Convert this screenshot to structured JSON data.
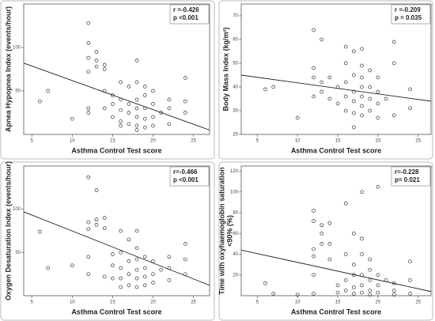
{
  "chart_data": [
    {
      "type": "scatter",
      "x_label": "Asthma Control Test score",
      "y_label": "Apnea Hypopnea Index (events/hour)",
      "annotations": [
        "r =-0.426",
        "p <0.001"
      ],
      "x": [
        6,
        7,
        10,
        12,
        12,
        12,
        12,
        12,
        12,
        13,
        13,
        13,
        14,
        14,
        14,
        14,
        15,
        15,
        15,
        16,
        16,
        16,
        16,
        16,
        17,
        17,
        17,
        17,
        18,
        18,
        18,
        18,
        18,
        18,
        18,
        19,
        19,
        19,
        19,
        19,
        20,
        20,
        20,
        20,
        21,
        22,
        22,
        22,
        24,
        24,
        24
      ],
      "values": [
        38,
        50,
        18,
        128,
        105,
        88,
        72,
        30,
        25,
        95,
        85,
        78,
        80,
        75,
        50,
        30,
        45,
        35,
        20,
        60,
        40,
        28,
        15,
        10,
        55,
        35,
        25,
        12,
        85,
        60,
        40,
        30,
        20,
        10,
        5,
        55,
        45,
        30,
        18,
        8,
        50,
        35,
        20,
        10,
        25,
        40,
        30,
        12,
        65,
        38,
        25
      ],
      "fit": {
        "x": [
          4,
          27
        ],
        "values": [
          82,
          5
        ]
      },
      "xlim": [
        4,
        27
      ],
      "ylim": [
        0,
        150
      ],
      "xticks": [
        5,
        10,
        15,
        20,
        25
      ],
      "yticks": [
        50,
        100
      ],
      "color": "#333333"
    },
    {
      "type": "scatter",
      "x_label": "Asthma Control Test score",
      "y_label": "Body Mass Index (kg/m²)",
      "annotations": [
        "r =-0.209",
        "p = 0.035"
      ],
      "x": [
        6,
        7,
        10,
        12,
        12,
        12,
        12,
        13,
        13,
        13,
        14,
        14,
        15,
        15,
        16,
        16,
        16,
        16,
        16,
        17,
        17,
        17,
        17,
        17,
        17,
        18,
        18,
        18,
        18,
        18,
        18,
        18,
        19,
        19,
        19,
        19,
        20,
        20,
        20,
        20,
        21,
        22,
        22,
        22,
        24,
        24
      ],
      "values": [
        39,
        40,
        27,
        64,
        48,
        44,
        36,
        60,
        42,
        38,
        44,
        35,
        40,
        33,
        57,
        50,
        42,
        36,
        30,
        55,
        45,
        38,
        34,
        29,
        23,
        56,
        49,
        44,
        40,
        36,
        32,
        28,
        47,
        40,
        35,
        30,
        44,
        38,
        33,
        27,
        35,
        59,
        50,
        28,
        39,
        31
      ],
      "fit": {
        "x": [
          3,
          26.6
        ],
        "values": [
          45,
          34
        ]
      },
      "xlim": [
        3,
        26.6
      ],
      "ylim": [
        20,
        75
      ],
      "xticks": [
        5,
        10,
        15,
        20,
        25
      ],
      "yticks": [
        20,
        30,
        40,
        50,
        60,
        70
      ],
      "color": "#333333"
    },
    {
      "type": "scatter",
      "x_label": "Asthma Control Test score",
      "y_label": "Oxygen Desaturation Index (events/hour)",
      "annotations": [
        "r=-0.466",
        "p <0.001"
      ],
      "x": [
        6,
        7,
        10,
        12,
        12,
        12,
        12,
        12,
        13,
        13,
        13,
        14,
        14,
        14,
        15,
        15,
        15,
        16,
        16,
        16,
        16,
        16,
        17,
        17,
        17,
        17,
        18,
        18,
        18,
        18,
        18,
        18,
        19,
        19,
        19,
        19,
        20,
        20,
        20,
        21,
        22,
        22,
        22,
        24,
        24,
        24
      ],
      "values": [
        74,
        32,
        35,
        137,
        85,
        77,
        45,
        25,
        122,
        88,
        82,
        90,
        78,
        22,
        48,
        35,
        20,
        75,
        50,
        32,
        20,
        10,
        65,
        40,
        25,
        12,
        75,
        55,
        42,
        30,
        20,
        10,
        45,
        32,
        22,
        12,
        40,
        25,
        15,
        30,
        45,
        32,
        18,
        60,
        42,
        25
      ],
      "fit": {
        "x": [
          4,
          27
        ],
        "values": [
          97,
          12
        ]
      },
      "xlim": [
        4,
        27
      ],
      "ylim": [
        0,
        150
      ],
      "xticks": [
        5,
        10,
        15,
        20,
        25
      ],
      "yticks": [
        50,
        100
      ],
      "color": "#333333"
    },
    {
      "type": "scatter",
      "x_label": "Asthma Control Test score",
      "y_label": [
        "Time with oxyhaemoglobin saturation",
        "<90% (%)"
      ],
      "annotations": [
        "r=-0.228",
        "p= 0.021"
      ],
      "x": [
        6,
        7,
        10,
        12,
        12,
        12,
        12,
        12,
        12,
        13,
        13,
        13,
        14,
        14,
        14,
        15,
        15,
        16,
        16,
        16,
        16,
        17,
        17,
        17,
        17,
        17,
        18,
        18,
        18,
        18,
        18,
        18,
        19,
        19,
        19,
        19,
        19,
        20,
        20,
        20,
        20,
        21,
        22,
        22,
        22,
        24,
        24,
        24
      ],
      "values": [
        12,
        2,
        1,
        82,
        72,
        45,
        38,
        20,
        2,
        68,
        60,
        50,
        70,
        50,
        35,
        10,
        3,
        89,
        40,
        15,
        5,
        60,
        30,
        20,
        8,
        2,
        100,
        55,
        40,
        20,
        10,
        3,
        35,
        25,
        15,
        5,
        1,
        105,
        20,
        10,
        3,
        15,
        12,
        5,
        1,
        33,
        15,
        2
      ],
      "fit": {
        "x": [
          3,
          26.6
        ],
        "values": [
          44,
          4
        ]
      },
      "xlim": [
        3,
        26.6
      ],
      "ylim": [
        0,
        125
      ],
      "xticks": [
        5,
        10,
        15,
        20,
        25
      ],
      "yticks": [
        20,
        40,
        60,
        80,
        100,
        120
      ],
      "color": "#333333"
    }
  ]
}
